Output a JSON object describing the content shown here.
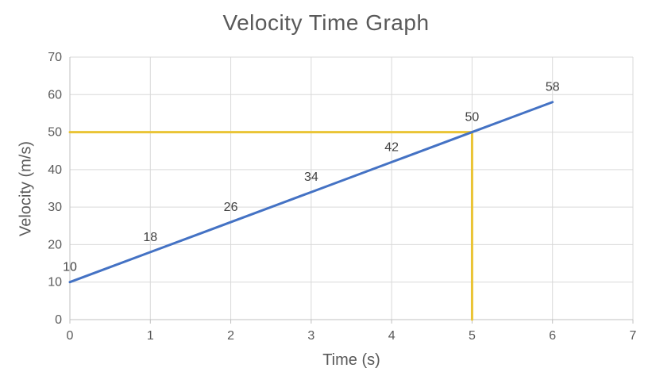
{
  "chart_data": {
    "type": "line",
    "title": "Velocity Time Graph",
    "xlabel": "Time (s)",
    "ylabel": "Velocity (m/s)",
    "xlim": [
      0,
      7
    ],
    "ylim": [
      0,
      70
    ],
    "x_ticks": [
      "0",
      "1",
      "2",
      "3",
      "4",
      "5",
      "6",
      "7"
    ],
    "y_ticks": [
      "0",
      "10",
      "20",
      "30",
      "40",
      "50",
      "60",
      "70"
    ],
    "grid": true,
    "legend_position": "none",
    "series": [
      {
        "name": "velocity",
        "color": "#4472C4",
        "stroke_width": 3,
        "x": [
          0,
          1,
          2,
          3,
          4,
          5,
          6
        ],
        "y": [
          10,
          18,
          26,
          34,
          42,
          50,
          58
        ],
        "data_labels": [
          "10",
          "18",
          "26",
          "34",
          "42",
          "50",
          "58"
        ]
      },
      {
        "name": "reference-guide",
        "color": "#EAC435",
        "stroke_width": 3,
        "x": [
          0,
          5,
          5
        ],
        "y": [
          50,
          50,
          0
        ],
        "data_labels": []
      }
    ],
    "colors": {
      "background": "#FFFFFF",
      "gridline": "#D9D9D9",
      "axis_line": "#C0C0C0",
      "tick_label": "#595959",
      "title": "#595959",
      "axis_title": "#595959",
      "data_label": "#404040"
    }
  }
}
